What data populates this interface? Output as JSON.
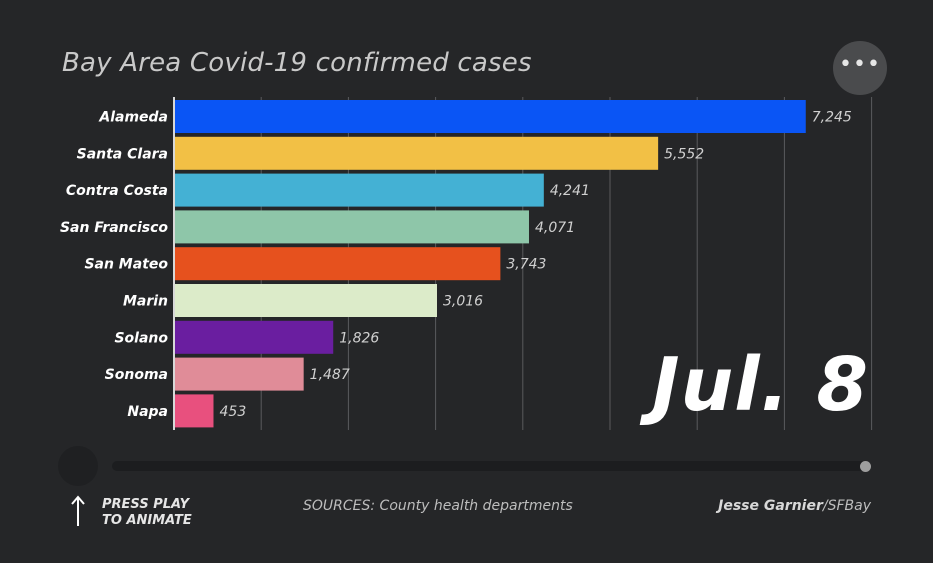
{
  "chart_data": {
    "type": "bar",
    "orientation": "horizontal",
    "title": "Bay Area Covid-19 confirmed cases",
    "categories": [
      "Alameda",
      "Santa Clara",
      "Contra Costa",
      "San Francisco",
      "San Mateo",
      "Marin",
      "Solano",
      "Sonoma",
      "Napa"
    ],
    "values": [
      7245,
      5552,
      4241,
      4071,
      3743,
      3016,
      1826,
      1487,
      453
    ],
    "value_labels": [
      "7,245",
      "5,552",
      "4,241",
      "4,071",
      "3,743",
      "3,016",
      "1,826",
      "1,487",
      "453"
    ],
    "colors": [
      "#0a55f5",
      "#f2c045",
      "#44b1d4",
      "#8ec6a9",
      "#e6511e",
      "#dcebc9",
      "#6a1ea0",
      "#e08c98",
      "#e8507e"
    ],
    "xlim": [
      0,
      8000
    ],
    "grid": true,
    "xlabel": "",
    "ylabel": ""
  },
  "date": "Jul. 8",
  "controls": {
    "play_label_line1": "PRESS PLAY",
    "play_label_line2": "TO ANIMATE",
    "menu_label": "•••",
    "slider_position": 1.0
  },
  "footer": {
    "sources": "SOURCES: County health departments",
    "author": "Jesse Garnier",
    "outlet": "/SFBay"
  }
}
